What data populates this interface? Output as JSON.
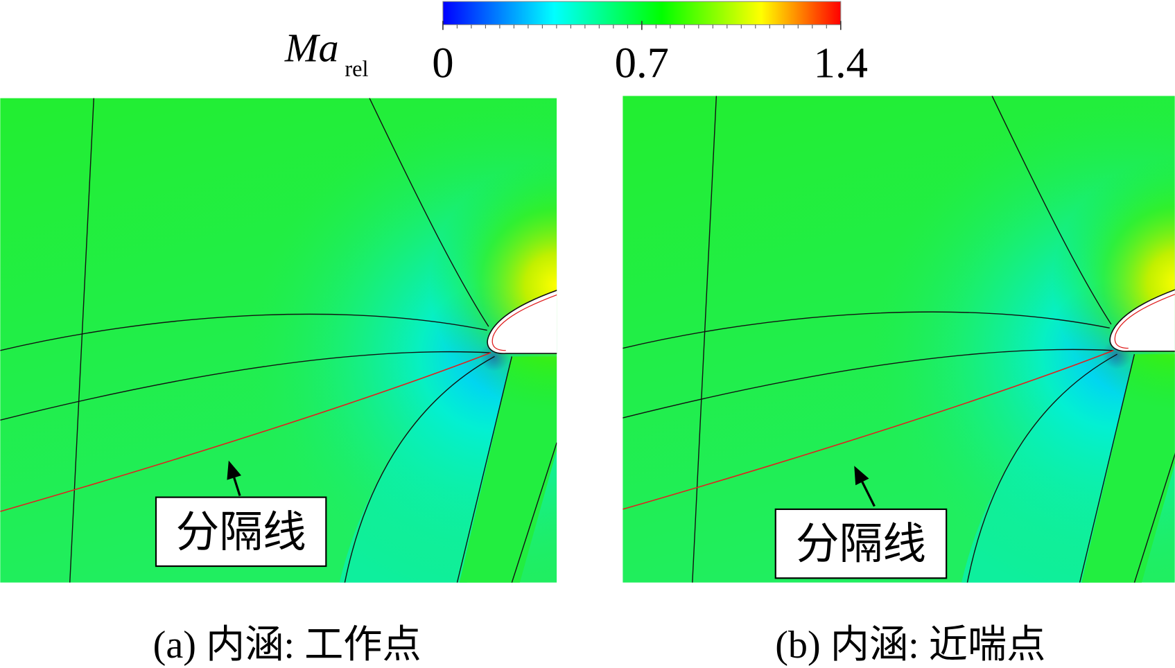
{
  "colorbar": {
    "label": "Ma",
    "label_sub": "rel",
    "range": [
      0,
      1.4
    ],
    "ticks": [
      0,
      0.7,
      1.4
    ]
  },
  "panels": [
    {
      "annotation": "分隔线",
      "caption": "(a) 内涵: 工作点"
    },
    {
      "annotation": "分隔线",
      "caption": "(b) 内涵: 近喘点"
    }
  ]
}
